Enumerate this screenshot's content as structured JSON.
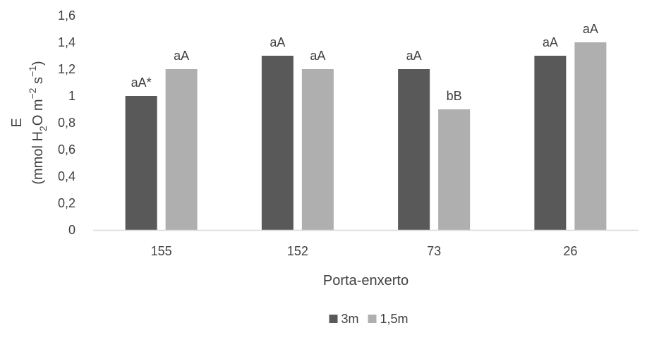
{
  "chart_data": {
    "type": "bar",
    "title": "",
    "xlabel": "Porta-enxerto",
    "ylabel": {
      "line1": "E",
      "line2": {
        "pre": "(mmol H",
        "sub": "2",
        "mid": "O m",
        "sup1": "−2",
        "mid2": " s",
        "sup2": "−1",
        "post": ")"
      }
    },
    "categories": [
      "155",
      "152",
      "73",
      "26"
    ],
    "series": [
      {
        "name": "3m",
        "color": "#595959",
        "values": [
          1.0,
          1.3,
          1.2,
          1.3
        ],
        "labels": [
          "aA*",
          "aA",
          "aA",
          "aA"
        ]
      },
      {
        "name": "1,5m",
        "color": "#afafaf",
        "values": [
          1.2,
          1.2,
          0.9,
          1.4
        ],
        "labels": [
          "aA",
          "aA",
          "bB",
          "aA"
        ]
      }
    ],
    "ylim": [
      0,
      1.6
    ],
    "yticks": [
      0,
      0.2,
      0.4,
      0.6,
      0.8,
      1,
      1.2,
      1.4,
      1.6
    ],
    "ytick_labels": [
      "0",
      "0,2",
      "0,4",
      "0,6",
      "0,8",
      "1",
      "1,2",
      "1,4",
      "1,6"
    ],
    "grid": false,
    "legend_position": "bottom"
  }
}
